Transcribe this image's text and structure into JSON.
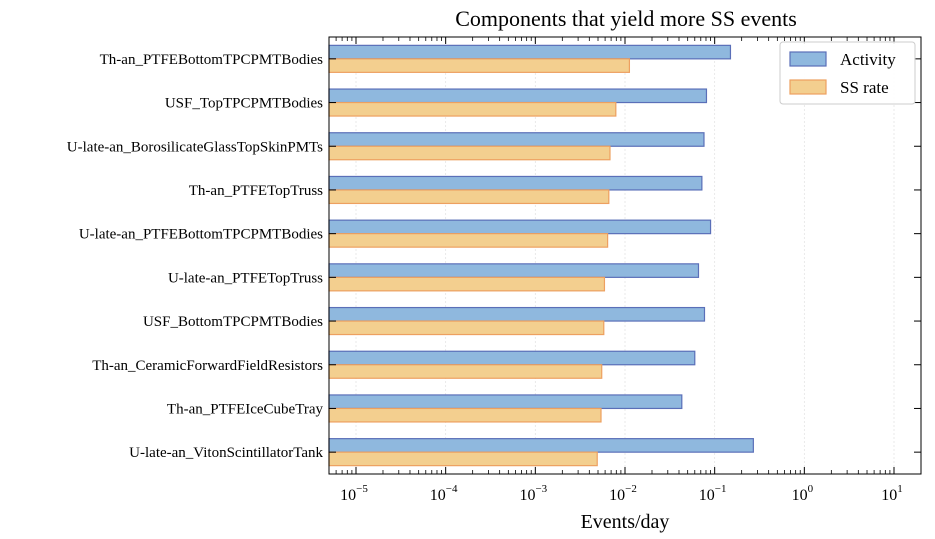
{
  "chart_data": {
    "type": "bar",
    "orientation": "horizontal",
    "title": "Components that yield more SS events",
    "xlabel": "Events/day",
    "ylabel": "",
    "xscale": "log",
    "xlim": [
      5e-06,
      20
    ],
    "xticks": [
      {
        "base": "10",
        "exp": "−5",
        "value": 1e-05
      },
      {
        "base": "10",
        "exp": "−4",
        "value": 0.0001
      },
      {
        "base": "10",
        "exp": "−3",
        "value": 0.001
      },
      {
        "base": "10",
        "exp": "−2",
        "value": 0.01
      },
      {
        "base": "10",
        "exp": "−1",
        "value": 0.1
      },
      {
        "base": "10",
        "exp": "0",
        "value": 1
      },
      {
        "base": "10",
        "exp": "1",
        "value": 10
      }
    ],
    "grid": true,
    "legend_position": "top-right",
    "categories": [
      "Th-an_PTFEBottomTPCPMTBodies",
      "USF_TopTPCPMTBodies",
      "U-late-an_BorosilicateGlassTopSkinPMTs",
      "Th-an_PTFETopTruss",
      "U-late-an_PTFEBottomTPCPMTBodies",
      "U-late-an_PTFETopTruss",
      "USF_BottomTPCPMTBodies",
      "Th-an_CeramicForwardFieldResistors",
      "Th-an_PTFEIceCubeTray",
      "U-late-an_VitonScintillatorTank"
    ],
    "series": [
      {
        "name": "Activity",
        "color": "#8fb8de",
        "edge": "#5a6fb8",
        "values": [
          0.15,
          0.081,
          0.076,
          0.072,
          0.09,
          0.066,
          0.077,
          0.06,
          0.043,
          0.27
        ]
      },
      {
        "name": "SS rate",
        "color": "#f3cf8f",
        "edge": "#eda060",
        "values": [
          0.0112,
          0.0079,
          0.0068,
          0.0066,
          0.0064,
          0.0059,
          0.0058,
          0.0055,
          0.0054,
          0.0049
        ]
      }
    ]
  }
}
